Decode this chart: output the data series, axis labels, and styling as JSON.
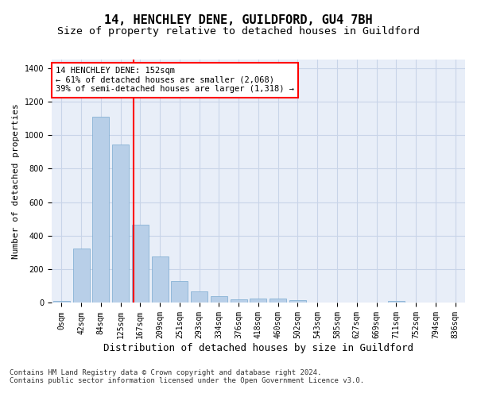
{
  "title": "14, HENCHLEY DENE, GUILDFORD, GU4 7BH",
  "subtitle": "Size of property relative to detached houses in Guildford",
  "xlabel": "Distribution of detached houses by size in Guildford",
  "ylabel": "Number of detached properties",
  "bar_labels": [
    "0sqm",
    "42sqm",
    "84sqm",
    "125sqm",
    "167sqm",
    "209sqm",
    "251sqm",
    "293sqm",
    "334sqm",
    "376sqm",
    "418sqm",
    "460sqm",
    "502sqm",
    "543sqm",
    "585sqm",
    "627sqm",
    "669sqm",
    "711sqm",
    "752sqm",
    "794sqm",
    "836sqm"
  ],
  "bar_values": [
    10,
    325,
    1110,
    945,
    465,
    275,
    130,
    70,
    40,
    22,
    25,
    25,
    18,
    0,
    0,
    0,
    0,
    12,
    0,
    0,
    0
  ],
  "bar_color": "#b8cfe8",
  "bar_edge_color": "#7aaad0",
  "vline_color": "red",
  "annotation_text": "14 HENCHLEY DENE: 152sqm\n← 61% of detached houses are smaller (2,068)\n39% of semi-detached houses are larger (1,318) →",
  "ylim": [
    0,
    1450
  ],
  "yticks": [
    0,
    200,
    400,
    600,
    800,
    1000,
    1200,
    1400
  ],
  "grid_color": "#c8d4e8",
  "bg_color": "#e8eef8",
  "footnote1": "Contains HM Land Registry data © Crown copyright and database right 2024.",
  "footnote2": "Contains public sector information licensed under the Open Government Licence v3.0.",
  "title_fontsize": 11,
  "subtitle_fontsize": 9.5,
  "xlabel_fontsize": 9,
  "ylabel_fontsize": 8,
  "tick_fontsize": 7,
  "annot_fontsize": 7.5,
  "footnote_fontsize": 6.5
}
